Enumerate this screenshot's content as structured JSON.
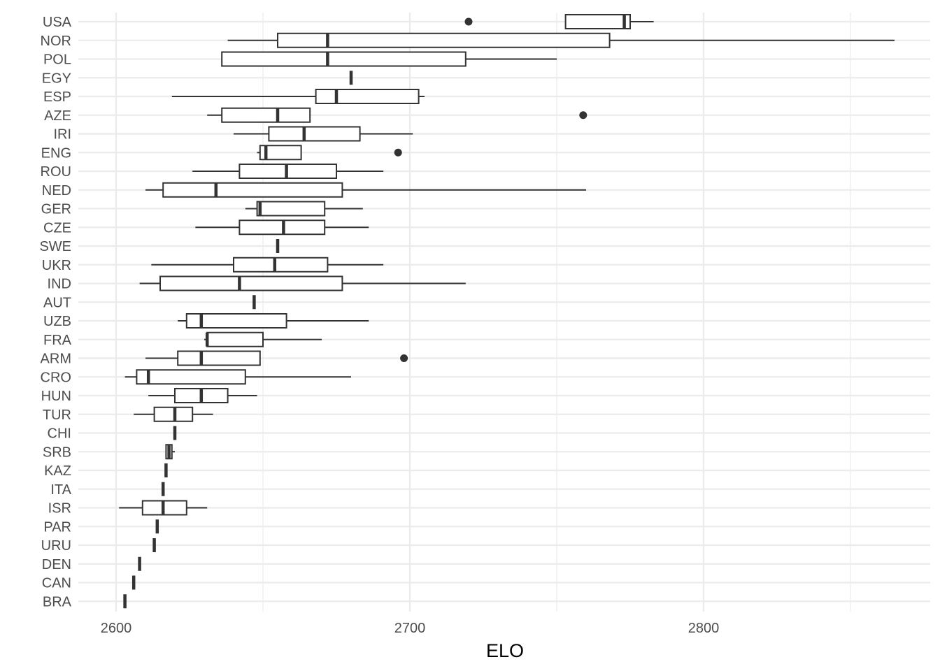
{
  "chart_data": {
    "type": "boxplot",
    "orientation": "horizontal",
    "xlabel": "ELO",
    "ylabel": "",
    "xlim": [
      2590,
      2873
    ],
    "xticks": [
      2600,
      2700,
      2800
    ],
    "xtick_labels": [
      "2600",
      "2700",
      "2800"
    ],
    "grid": true,
    "legend": "none",
    "colors": {
      "grid": "#ebebeb",
      "box": "#333333",
      "background": "#ffffff"
    },
    "categories": [
      "USA",
      "NOR",
      "POL",
      "EGY",
      "ESP",
      "AZE",
      "IRI",
      "ENG",
      "ROU",
      "NED",
      "GER",
      "CZE",
      "SWE",
      "UKR",
      "IND",
      "AUT",
      "UZB",
      "FRA",
      "ARM",
      "CRO",
      "HUN",
      "TUR",
      "CHI",
      "SRB",
      "KAZ",
      "ITA",
      "ISR",
      "PAR",
      "URU",
      "DEN",
      "CAN",
      "BRA"
    ],
    "boxes": [
      {
        "category": "USA",
        "whisker_low": 2753,
        "q1": 2753,
        "median": 2773,
        "q3": 2775,
        "whisker_high": 2783,
        "outliers": [
          2720
        ]
      },
      {
        "category": "NOR",
        "whisker_low": 2638,
        "q1": 2655,
        "median": 2672,
        "q3": 2768,
        "whisker_high": 2865,
        "outliers": []
      },
      {
        "category": "POL",
        "whisker_low": 2636,
        "q1": 2636,
        "median": 2672,
        "q3": 2719,
        "whisker_high": 2750,
        "outliers": []
      },
      {
        "category": "EGY",
        "whisker_low": 2680,
        "q1": 2680,
        "median": 2680,
        "q3": 2680,
        "whisker_high": 2680,
        "outliers": []
      },
      {
        "category": "ESP",
        "whisker_low": 2619,
        "q1": 2668,
        "median": 2675,
        "q3": 2703,
        "whisker_high": 2705,
        "outliers": []
      },
      {
        "category": "AZE",
        "whisker_low": 2631,
        "q1": 2636,
        "median": 2655,
        "q3": 2666,
        "whisker_high": 2666,
        "outliers": [
          2759
        ]
      },
      {
        "category": "IRI",
        "whisker_low": 2640,
        "q1": 2652,
        "median": 2664,
        "q3": 2683,
        "whisker_high": 2701,
        "outliers": []
      },
      {
        "category": "ENG",
        "whisker_low": 2648,
        "q1": 2649,
        "median": 2651,
        "q3": 2663,
        "whisker_high": 2663,
        "outliers": [
          2696
        ]
      },
      {
        "category": "ROU",
        "whisker_low": 2626,
        "q1": 2642,
        "median": 2658,
        "q3": 2675,
        "whisker_high": 2691,
        "outliers": []
      },
      {
        "category": "NED",
        "whisker_low": 2610,
        "q1": 2616,
        "median": 2634,
        "q3": 2677,
        "whisker_high": 2760,
        "outliers": []
      },
      {
        "category": "GER",
        "whisker_low": 2644,
        "q1": 2648,
        "median": 2649,
        "q3": 2671,
        "whisker_high": 2684,
        "outliers": []
      },
      {
        "category": "CZE",
        "whisker_low": 2627,
        "q1": 2642,
        "median": 2657,
        "q3": 2671,
        "whisker_high": 2686,
        "outliers": []
      },
      {
        "category": "SWE",
        "whisker_low": 2655,
        "q1": 2655,
        "median": 2655,
        "q3": 2655,
        "whisker_high": 2655,
        "outliers": []
      },
      {
        "category": "UKR",
        "whisker_low": 2612,
        "q1": 2640,
        "median": 2654,
        "q3": 2672,
        "whisker_high": 2691,
        "outliers": []
      },
      {
        "category": "IND",
        "whisker_low": 2608,
        "q1": 2615,
        "median": 2642,
        "q3": 2677,
        "whisker_high": 2719,
        "outliers": []
      },
      {
        "category": "AUT",
        "whisker_low": 2647,
        "q1": 2647,
        "median": 2647,
        "q3": 2647,
        "whisker_high": 2647,
        "outliers": []
      },
      {
        "category": "UZB",
        "whisker_low": 2621,
        "q1": 2624,
        "median": 2629,
        "q3": 2658,
        "whisker_high": 2686,
        "outliers": []
      },
      {
        "category": "FRA",
        "whisker_low": 2630,
        "q1": 2631,
        "median": 2631,
        "q3": 2650,
        "whisker_high": 2670,
        "outliers": []
      },
      {
        "category": "ARM",
        "whisker_low": 2610,
        "q1": 2621,
        "median": 2629,
        "q3": 2649,
        "whisker_high": 2649,
        "outliers": [
          2698
        ]
      },
      {
        "category": "CRO",
        "whisker_low": 2603,
        "q1": 2607,
        "median": 2611,
        "q3": 2644,
        "whisker_high": 2680,
        "outliers": []
      },
      {
        "category": "HUN",
        "whisker_low": 2611,
        "q1": 2620,
        "median": 2629,
        "q3": 2638,
        "whisker_high": 2648,
        "outliers": []
      },
      {
        "category": "TUR",
        "whisker_low": 2606,
        "q1": 2613,
        "median": 2620,
        "q3": 2626,
        "whisker_high": 2633,
        "outliers": []
      },
      {
        "category": "CHI",
        "whisker_low": 2620,
        "q1": 2620,
        "median": 2620,
        "q3": 2620,
        "whisker_high": 2620,
        "outliers": []
      },
      {
        "category": "SRB",
        "whisker_low": 2617,
        "q1": 2617,
        "median": 2618,
        "q3": 2619,
        "whisker_high": 2620,
        "outliers": []
      },
      {
        "category": "KAZ",
        "whisker_low": 2617,
        "q1": 2617,
        "median": 2617,
        "q3": 2617,
        "whisker_high": 2617,
        "outliers": []
      },
      {
        "category": "ITA",
        "whisker_low": 2616,
        "q1": 2616,
        "median": 2616,
        "q3": 2616,
        "whisker_high": 2616,
        "outliers": []
      },
      {
        "category": "ISR",
        "whisker_low": 2601,
        "q1": 2609,
        "median": 2616,
        "q3": 2624,
        "whisker_high": 2631,
        "outliers": []
      },
      {
        "category": "PAR",
        "whisker_low": 2614,
        "q1": 2614,
        "median": 2614,
        "q3": 2614,
        "whisker_high": 2614,
        "outliers": []
      },
      {
        "category": "URU",
        "whisker_low": 2613,
        "q1": 2613,
        "median": 2613,
        "q3": 2613,
        "whisker_high": 2613,
        "outliers": []
      },
      {
        "category": "DEN",
        "whisker_low": 2608,
        "q1": 2608,
        "median": 2608,
        "q3": 2608,
        "whisker_high": 2608,
        "outliers": []
      },
      {
        "category": "CAN",
        "whisker_low": 2606,
        "q1": 2606,
        "median": 2606,
        "q3": 2606,
        "whisker_high": 2606,
        "outliers": []
      },
      {
        "category": "BRA",
        "whisker_low": 2603,
        "q1": 2603,
        "median": 2603,
        "q3": 2603,
        "whisker_high": 2603,
        "outliers": []
      }
    ]
  }
}
